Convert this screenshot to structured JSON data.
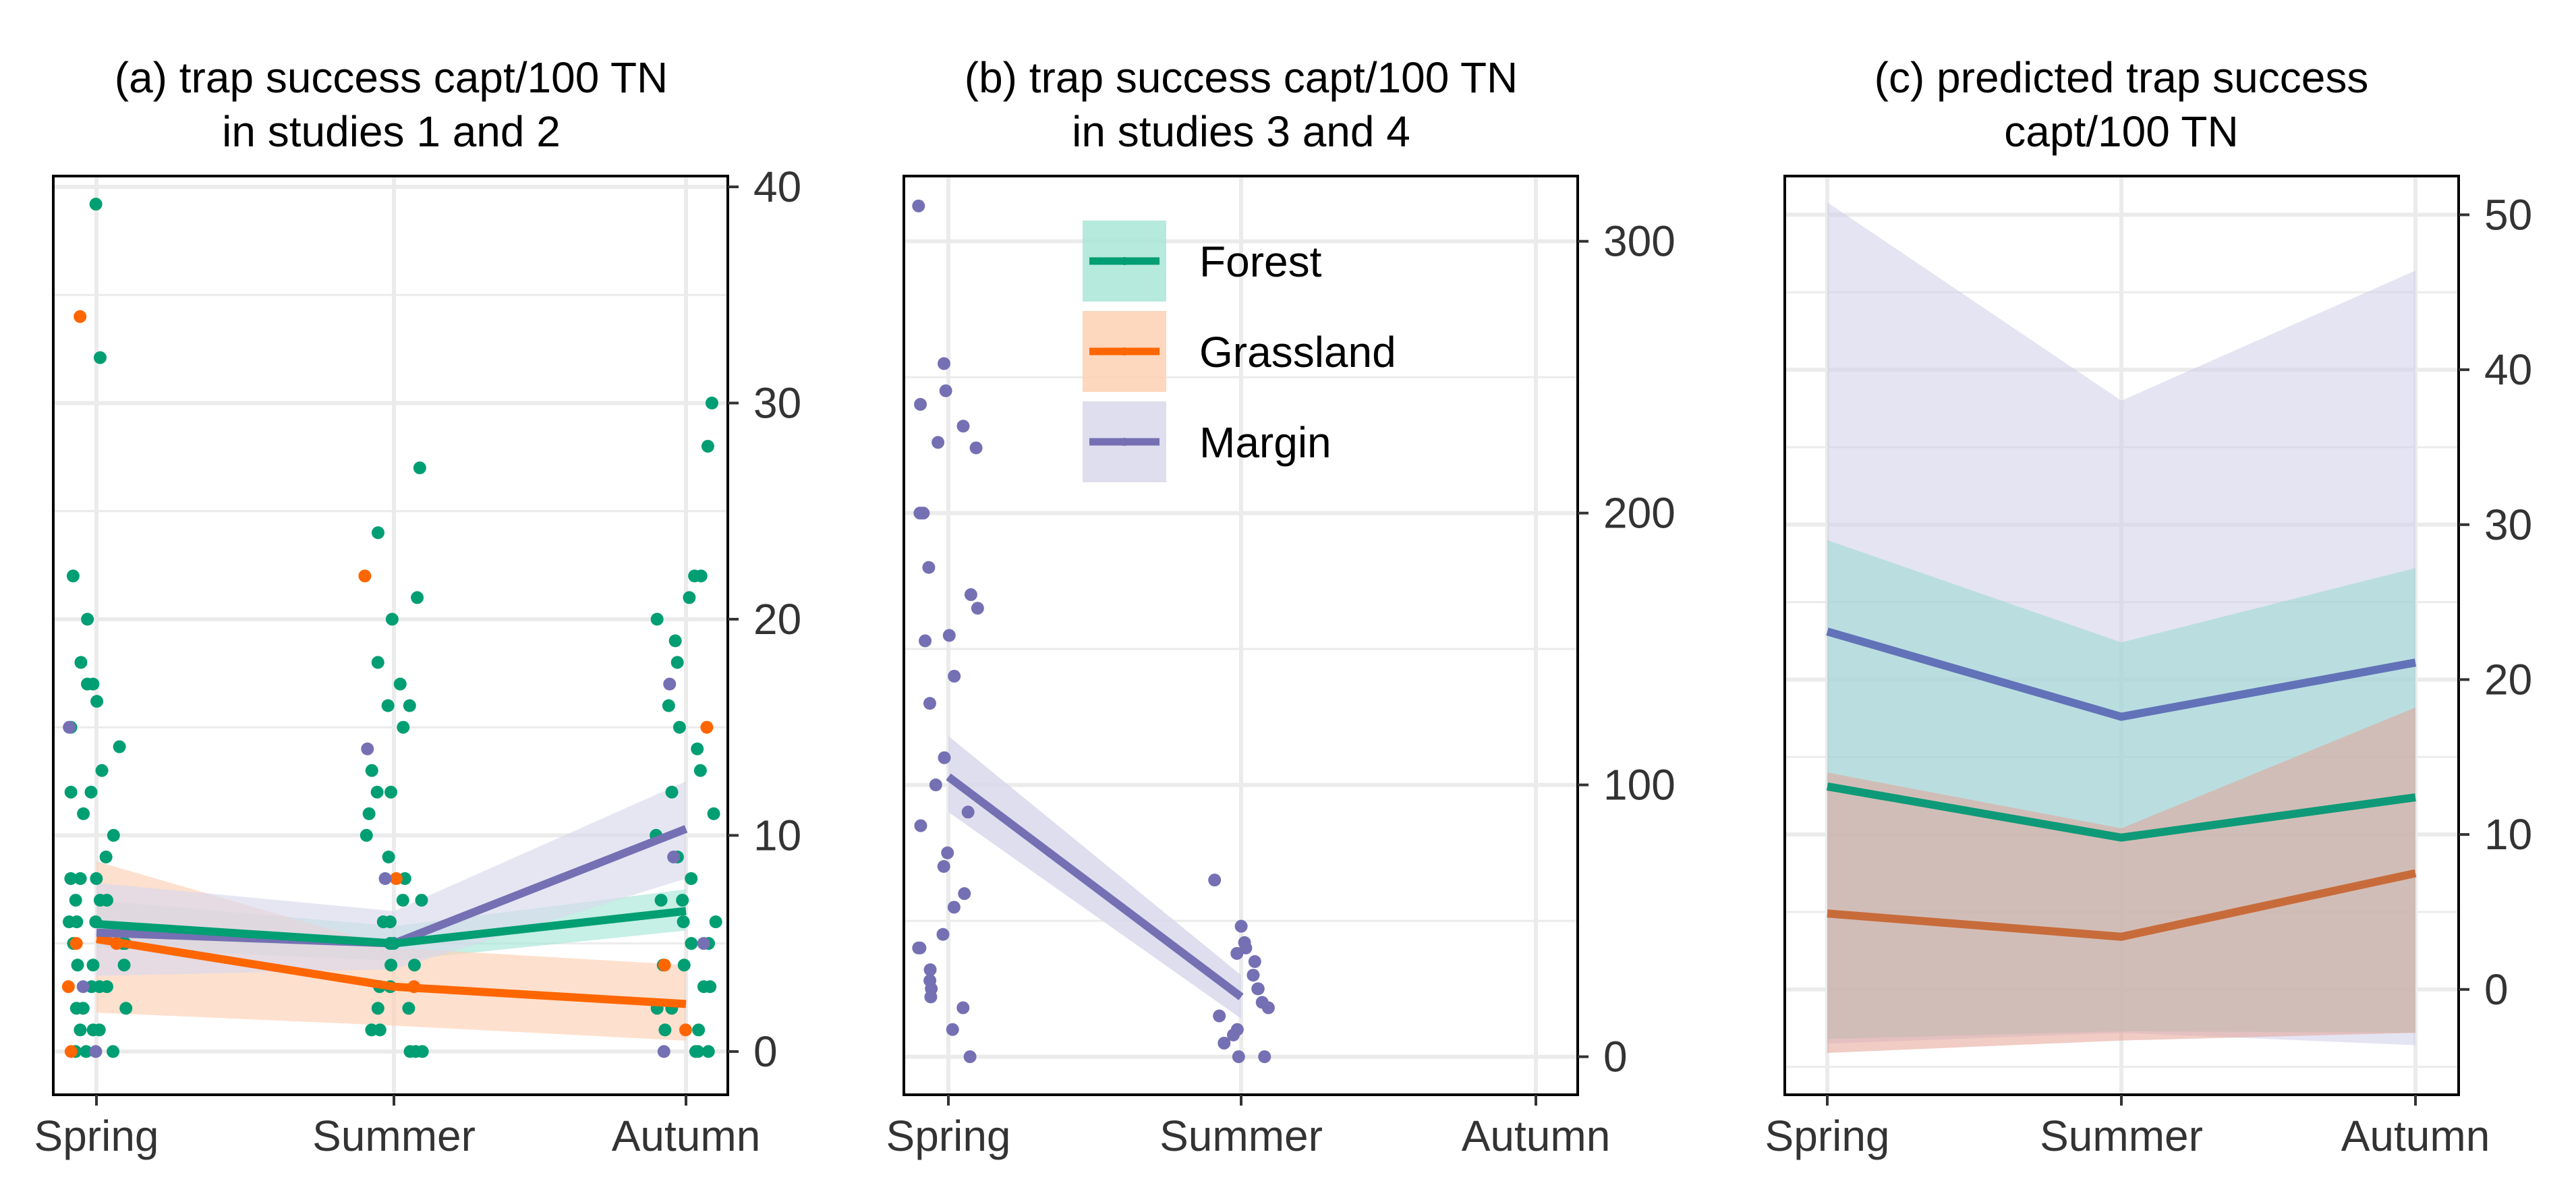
{
  "colors": {
    "forest": "#009E73",
    "grassland": "#FF6600",
    "margin": "#7570B3",
    "forest_fill": "#A8E6D7",
    "grassland_fill": "#FDD0B3",
    "margin_fill": "#D9D8EC",
    "grid": "#EBEBEB"
  },
  "legend": {
    "items": [
      {
        "key": "forest",
        "label": "Forest"
      },
      {
        "key": "grassland",
        "label": "Grassland"
      },
      {
        "key": "margin",
        "label": "Margin"
      }
    ]
  },
  "chart_data": [
    {
      "id": "a",
      "type": "scatter",
      "title_line1": "(a) trap success capt/100 TN",
      "title_line2": "in studies 1 and 2",
      "categories": [
        "Spring",
        "Summer",
        "Autumn"
      ],
      "ylim": [
        -2,
        40.5
      ],
      "yticks": [
        0,
        10,
        20,
        30,
        40
      ],
      "ytick_labels": [
        "0",
        "10",
        "20",
        "30",
        "40"
      ],
      "y_axis_position": "right",
      "series": [
        {
          "key": "forest",
          "name": "Forest",
          "line": [
            5.9,
            5.0,
            6.5
          ],
          "lower": [
            4.8,
            4.2,
            5.6
          ],
          "upper": [
            7.0,
            5.8,
            7.5
          ]
        },
        {
          "key": "grassland",
          "name": "Grassland",
          "line": [
            5.2,
            3.0,
            2.2
          ],
          "lower": [
            1.8,
            1.2,
            0.5
          ],
          "upper": [
            8.8,
            4.8,
            4.0
          ]
        },
        {
          "key": "margin",
          "name": "Margin",
          "line": [
            5.5,
            5.0,
            10.3
          ],
          "lower": [
            3.5,
            3.8,
            8.0
          ],
          "upper": [
            7.8,
            6.5,
            12.5
          ]
        }
      ],
      "points": {
        "forest": [
          [
            0,
            39.2
          ],
          [
            0,
            32.1
          ],
          [
            0,
            22.0
          ],
          [
            0,
            18.0
          ],
          [
            0,
            17.0
          ],
          [
            0,
            16.2
          ],
          [
            0,
            15.0
          ],
          [
            0,
            14.1
          ],
          [
            0,
            13.0
          ],
          [
            0,
            12.0
          ],
          [
            0,
            11.0
          ],
          [
            0,
            10.0
          ],
          [
            0,
            9.0
          ],
          [
            0,
            8.0
          ],
          [
            0,
            8.0
          ],
          [
            0,
            8.0
          ],
          [
            0,
            7.0
          ],
          [
            0,
            7.0
          ],
          [
            0,
            7.0
          ],
          [
            0,
            6.0
          ],
          [
            0,
            6.0
          ],
          [
            0,
            6.0
          ],
          [
            0,
            5.0
          ],
          [
            0,
            5.0
          ],
          [
            0,
            5.0
          ],
          [
            0,
            4.0
          ],
          [
            0,
            4.0
          ],
          [
            0,
            4.0
          ],
          [
            0,
            3.0
          ],
          [
            0,
            3.0
          ],
          [
            0,
            3.0
          ],
          [
            0,
            2.0
          ],
          [
            0,
            2.0
          ],
          [
            0,
            2.0
          ],
          [
            0,
            1.0
          ],
          [
            0,
            1.0
          ],
          [
            0,
            1.0
          ],
          [
            0,
            0.0
          ],
          [
            0,
            0.0
          ],
          [
            0,
            0.0
          ],
          [
            0,
            20.0
          ],
          [
            0,
            17.0
          ],
          [
            0,
            12.0
          ],
          [
            1,
            27.0
          ],
          [
            1,
            24.0
          ],
          [
            1,
            21.0
          ],
          [
            1,
            20.0
          ],
          [
            1,
            18.0
          ],
          [
            1,
            17.0
          ],
          [
            1,
            16.0
          ],
          [
            1,
            16.0
          ],
          [
            1,
            15.0
          ],
          [
            1,
            13.0
          ],
          [
            1,
            12.0
          ],
          [
            1,
            12.0
          ],
          [
            1,
            11.0
          ],
          [
            1,
            10.0
          ],
          [
            1,
            9.0
          ],
          [
            1,
            8.0
          ],
          [
            1,
            7.0
          ],
          [
            1,
            7.0
          ],
          [
            1,
            6.0
          ],
          [
            1,
            6.0
          ],
          [
            1,
            5.0
          ],
          [
            1,
            5.0
          ],
          [
            1,
            4.0
          ],
          [
            1,
            4.0
          ],
          [
            1,
            3.0
          ],
          [
            1,
            3.0
          ],
          [
            1,
            2.0
          ],
          [
            1,
            2.0
          ],
          [
            1,
            1.0
          ],
          [
            1,
            1.0
          ],
          [
            1,
            0.0
          ],
          [
            1,
            0.0
          ],
          [
            1,
            0.0
          ],
          [
            2,
            30.0
          ],
          [
            2,
            28.0
          ],
          [
            2,
            22.0
          ],
          [
            2,
            22.0
          ],
          [
            2,
            21.0
          ],
          [
            2,
            20.0
          ],
          [
            2,
            19.0
          ],
          [
            2,
            18.0
          ],
          [
            2,
            16.0
          ],
          [
            2,
            15.0
          ],
          [
            2,
            14.0
          ],
          [
            2,
            13.0
          ],
          [
            2,
            12.0
          ],
          [
            2,
            11.0
          ],
          [
            2,
            10.0
          ],
          [
            2,
            9.0
          ],
          [
            2,
            8.0
          ],
          [
            2,
            7.0
          ],
          [
            2,
            7.0
          ],
          [
            2,
            6.0
          ],
          [
            2,
            6.0
          ],
          [
            2,
            5.0
          ],
          [
            2,
            5.0
          ],
          [
            2,
            4.0
          ],
          [
            2,
            4.0
          ],
          [
            2,
            3.0
          ],
          [
            2,
            3.0
          ],
          [
            2,
            2.0
          ],
          [
            2,
            2.0
          ],
          [
            2,
            1.0
          ],
          [
            2,
            1.0
          ],
          [
            2,
            0.0
          ],
          [
            2,
            0.0
          ],
          [
            2,
            0.0
          ]
        ],
        "grassland": [
          [
            0,
            34.0
          ],
          [
            0,
            5.0
          ],
          [
            0,
            5.0
          ],
          [
            0,
            3.0
          ],
          [
            0,
            0.0
          ],
          [
            1,
            22.0
          ],
          [
            1,
            8.0
          ],
          [
            1,
            3.0
          ],
          [
            2,
            15.0
          ],
          [
            2,
            4.0
          ],
          [
            2,
            1.0
          ]
        ],
        "margin": [
          [
            0,
            15.0
          ],
          [
            0,
            3.0
          ],
          [
            0,
            0.0
          ],
          [
            1,
            14.0
          ],
          [
            1,
            8.0
          ],
          [
            2,
            17.0
          ],
          [
            2,
            9.0
          ],
          [
            2,
            5.0
          ],
          [
            2,
            0.0
          ]
        ]
      }
    },
    {
      "id": "b",
      "type": "scatter",
      "title_line1": "(b) trap success capt/100 TN",
      "title_line2": "in studies 3 and 4",
      "categories": [
        "Spring",
        "Summer",
        "Autumn"
      ],
      "ylim": [
        -14,
        324
      ],
      "yticks": [
        0,
        100,
        200,
        300
      ],
      "ytick_labels": [
        "0",
        "100",
        "200",
        "300"
      ],
      "y_axis_position": "right",
      "legend_position": "top-center",
      "series": [
        {
          "key": "margin",
          "name": "Margin",
          "line": [
            103,
            22
          ],
          "lower": [
            90,
            14
          ],
          "upper": [
            118,
            30
          ]
        }
      ],
      "points": {
        "forest": [],
        "grassland": [],
        "margin": [
          [
            0,
            313
          ],
          [
            0,
            255
          ],
          [
            0,
            245
          ],
          [
            0,
            240
          ],
          [
            0,
            232
          ],
          [
            0,
            226
          ],
          [
            0,
            224
          ],
          [
            0,
            200
          ],
          [
            0,
            200
          ],
          [
            0,
            180
          ],
          [
            0,
            170
          ],
          [
            0,
            165
          ],
          [
            0,
            153
          ],
          [
            0,
            155
          ],
          [
            0,
            140
          ],
          [
            0,
            130
          ],
          [
            0,
            110
          ],
          [
            0,
            100
          ],
          [
            0,
            90
          ],
          [
            0,
            85
          ],
          [
            0,
            75
          ],
          [
            0,
            70
          ],
          [
            0,
            60
          ],
          [
            0,
            55
          ],
          [
            0,
            45
          ],
          [
            0,
            40
          ],
          [
            0,
            40
          ],
          [
            0,
            32
          ],
          [
            0,
            28
          ],
          [
            0,
            25
          ],
          [
            0,
            22
          ],
          [
            0,
            18
          ],
          [
            0,
            10
          ],
          [
            0,
            0
          ],
          [
            1,
            65
          ],
          [
            1,
            48
          ],
          [
            1,
            42
          ],
          [
            1,
            40
          ],
          [
            1,
            38
          ],
          [
            1,
            35
          ],
          [
            1,
            30
          ],
          [
            1,
            25
          ],
          [
            1,
            25
          ],
          [
            1,
            20
          ],
          [
            1,
            18
          ],
          [
            1,
            15
          ],
          [
            1,
            10
          ],
          [
            1,
            8
          ],
          [
            1,
            5
          ],
          [
            1,
            0
          ],
          [
            1,
            0
          ]
        ]
      }
    },
    {
      "id": "c",
      "type": "area",
      "title_line1": "(c) predicted trap success",
      "title_line2": "capt/100 TN",
      "categories": [
        "Spring",
        "Summer",
        "Autumn"
      ],
      "ylim": [
        -6.8,
        52.5
      ],
      "yticks": [
        0,
        10,
        20,
        30,
        40,
        50
      ],
      "ytick_labels": [
        "0",
        "10",
        "20",
        "30",
        "40",
        "50"
      ],
      "y_axis_position": "right",
      "series": [
        {
          "key": "margin",
          "name": "Margin",
          "line": [
            23.1,
            17.6,
            21.1
          ],
          "lower": [
            -3.5,
            -2.8,
            -3.6
          ],
          "upper": [
            50.8,
            38.0,
            46.4
          ]
        },
        {
          "key": "forest",
          "name": "Forest",
          "line": [
            13.1,
            9.8,
            12.4
          ],
          "lower": [
            -3.2,
            -2.7,
            -2.8
          ],
          "upper": [
            29.0,
            22.4,
            27.2
          ]
        },
        {
          "key": "grassland",
          "name": "Grassland",
          "line": [
            4.9,
            3.4,
            7.5
          ],
          "lower": [
            -4.1,
            -3.3,
            -2.8
          ],
          "upper": [
            14.0,
            10.4,
            18.2
          ]
        }
      ]
    }
  ]
}
